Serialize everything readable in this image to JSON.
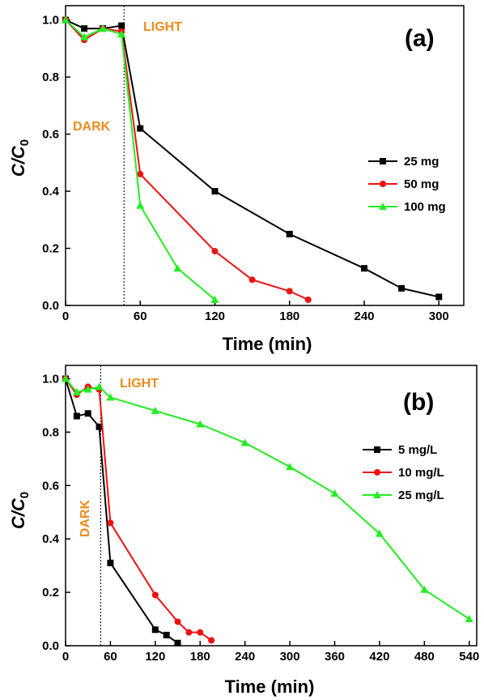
{
  "chart_data": [
    {
      "type": "line",
      "panel_label": "(a)",
      "xlabel": "Time (min)",
      "ylabel_main": "C/C",
      "ylabel_sub": "0",
      "xlim": [
        0,
        320
      ],
      "ylim": [
        0,
        1.05
      ],
      "xticks": [
        0,
        60,
        120,
        180,
        240,
        300
      ],
      "yticks": [
        0.0,
        0.2,
        0.4,
        0.6,
        0.8,
        1.0
      ],
      "divider_x": 47,
      "annotations": [
        {
          "text": "LIGHT",
          "color": "#f08a1c"
        },
        {
          "text": "DARK",
          "color": "#f08a1c"
        }
      ],
      "legend_position": "center-right",
      "series": [
        {
          "name": "25 mg",
          "color": "#000000",
          "marker": "square",
          "x": [
            0,
            15,
            30,
            45,
            60,
            120,
            180,
            240,
            270,
            300
          ],
          "y": [
            1.0,
            0.97,
            0.97,
            0.98,
            0.62,
            0.4,
            0.25,
            0.13,
            0.06,
            0.03
          ]
        },
        {
          "name": "50 mg",
          "color": "#ee1111",
          "marker": "circle",
          "x": [
            0,
            15,
            30,
            45,
            60,
            120,
            150,
            180,
            195
          ],
          "y": [
            1.0,
            0.93,
            0.97,
            0.96,
            0.46,
            0.19,
            0.09,
            0.05,
            0.02
          ]
        },
        {
          "name": "100 mg",
          "color": "#22ee22",
          "marker": "triangle",
          "x": [
            0,
            15,
            30,
            45,
            60,
            90,
            120
          ],
          "y": [
            1.0,
            0.94,
            0.97,
            0.95,
            0.35,
            0.13,
            0.02
          ]
        }
      ]
    },
    {
      "type": "line",
      "panel_label": "(b)",
      "xlabel": "Time (min)",
      "ylabel_main": "C/C",
      "ylabel_sub": "0",
      "xlim": [
        0,
        550
      ],
      "ylim": [
        0,
        1.05
      ],
      "xticks": [
        0,
        60,
        120,
        180,
        240,
        300,
        360,
        420,
        480,
        540
      ],
      "yticks": [
        0.0,
        0.2,
        0.4,
        0.6,
        0.8,
        1.0
      ],
      "divider_x": 47,
      "annotations": [
        {
          "text": "LIGHT",
          "color": "#f08a1c"
        },
        {
          "text": "DARK",
          "color": "#f08a1c"
        }
      ],
      "legend_position": "center-right",
      "series": [
        {
          "name": "5 mg/L",
          "color": "#000000",
          "marker": "square",
          "x": [
            0,
            15,
            30,
            45,
            60,
            120,
            135,
            150
          ],
          "y": [
            1.0,
            0.86,
            0.87,
            0.82,
            0.31,
            0.06,
            0.04,
            0.01
          ]
        },
        {
          "name": "10 mg/L",
          "color": "#ee1111",
          "marker": "circle",
          "x": [
            0,
            15,
            30,
            45,
            60,
            120,
            150,
            165,
            180,
            195
          ],
          "y": [
            1.0,
            0.94,
            0.97,
            0.96,
            0.46,
            0.19,
            0.09,
            0.05,
            0.05,
            0.02
          ]
        },
        {
          "name": "25 mg/L",
          "color": "#22ee22",
          "marker": "triangle",
          "x": [
            0,
            15,
            30,
            45,
            60,
            120,
            180,
            240,
            300,
            360,
            420,
            480,
            540
          ],
          "y": [
            1.0,
            0.95,
            0.96,
            0.97,
            0.93,
            0.88,
            0.83,
            0.76,
            0.67,
            0.57,
            0.42,
            0.21,
            0.1
          ]
        }
      ]
    }
  ]
}
